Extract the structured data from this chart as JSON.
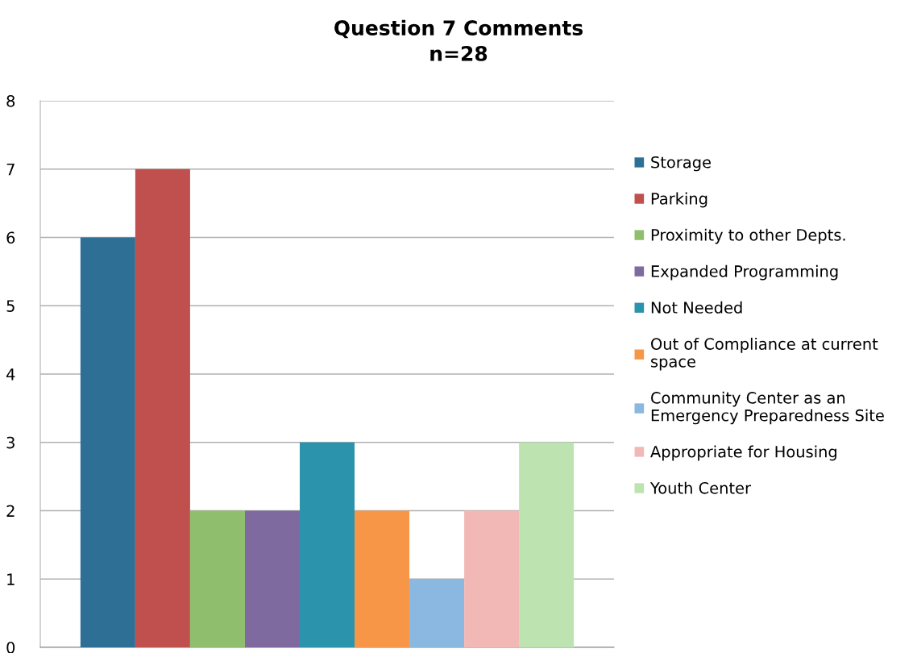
{
  "chart_data": {
    "type": "bar",
    "title": "Question 7 Comments\nn=28",
    "categories": [
      null
    ],
    "series": [
      {
        "name": "Storage",
        "color": "#2e6f96",
        "values": [
          6
        ]
      },
      {
        "name": "Parking",
        "color": "#c0504d",
        "values": [
          7
        ]
      },
      {
        "name": "Proximity to other Depts.",
        "color": "#8fbf6c",
        "values": [
          2
        ]
      },
      {
        "name": "Expanded Programming",
        "color": "#7f6aa0",
        "values": [
          2
        ]
      },
      {
        "name": "Not Needed",
        "color": "#2b93ab",
        "values": [
          3
        ]
      },
      {
        "name": "Out of Compliance at current\nspace",
        "color": "#f79646",
        "values": [
          2
        ]
      },
      {
        "name": "Community Center as an\nEmergency Preparedness Site",
        "color": "#8ab8e0",
        "values": [
          1
        ]
      },
      {
        "name": "Appropriate for Housing",
        "color": "#f2b8b5",
        "values": [
          2
        ]
      },
      {
        "name": "Youth Center",
        "color": "#bde3b0",
        "values": [
          3
        ]
      }
    ],
    "ylim": [
      0,
      8
    ],
    "yticks": [
      0,
      1,
      2,
      3,
      4,
      5,
      6,
      7,
      8
    ],
    "grid": "y",
    "legend": "right"
  }
}
